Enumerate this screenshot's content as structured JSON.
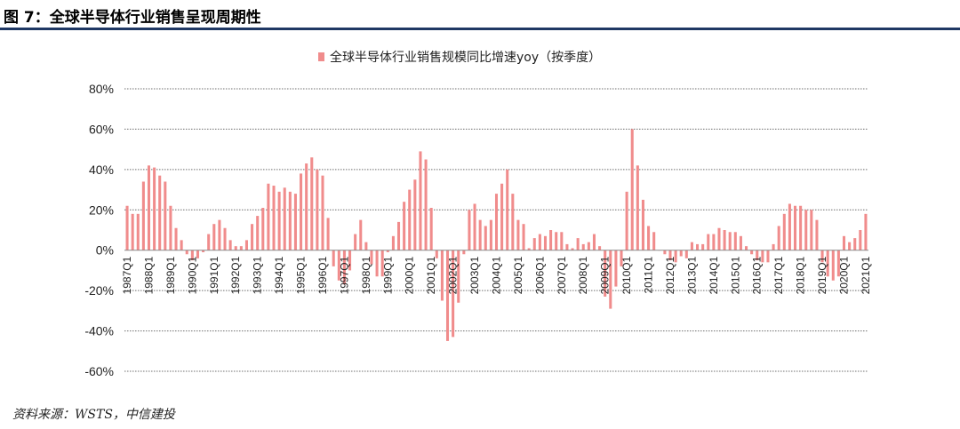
{
  "figure": {
    "title": "图 7：全球半导体行业销售呈现周期性",
    "source": "资料来源：WSTS，中信建投"
  },
  "chart_data": {
    "type": "bar",
    "bar_color": "#f08c8c",
    "grid": true,
    "legend": "top",
    "ylim": [
      -60,
      80
    ],
    "yticks": [
      -60,
      -40,
      -20,
      0,
      20,
      40,
      60,
      80
    ],
    "ytick_labels": [
      "-60%",
      "-40%",
      "-20%",
      "0%",
      "20%",
      "40%",
      "60%",
      "80%"
    ],
    "xtick_labels": [
      "1987Q1",
      "1988Q1",
      "1989Q1",
      "1990Q1",
      "1991Q1",
      "1992Q1",
      "1993Q1",
      "1994Q1",
      "1995Q1",
      "1996Q1",
      "1997Q1",
      "1998Q1",
      "1999Q1",
      "2000Q1",
      "2001Q1",
      "2002Q1",
      "2003Q1",
      "2004Q1",
      "2005Q1",
      "2006Q1",
      "2007Q1",
      "2008Q1",
      "2009Q1",
      "2010Q1",
      "2011Q1",
      "2012Q1",
      "2013Q1",
      "2014Q1",
      "2015Q1",
      "2016Q1",
      "2017Q1",
      "2018Q1",
      "2019Q1",
      "2020Q1",
      "2021Q1"
    ],
    "series": [
      {
        "name": "全球半导体行业销售规模同比增速yoy（按季度）",
        "values": [
          22,
          18,
          18,
          34,
          42,
          41,
          37,
          34,
          22,
          11,
          5,
          -2,
          -5,
          -4,
          -1,
          8,
          13,
          15,
          11,
          5,
          2,
          2,
          5,
          13,
          17,
          21,
          33,
          32,
          29,
          31,
          29,
          28,
          38,
          43,
          46,
          40,
          37,
          16,
          -8,
          -15,
          -17,
          -10,
          8,
          15,
          4,
          -7,
          -13,
          -13,
          -1,
          7,
          14,
          24,
          30,
          35,
          49,
          45,
          21,
          -4,
          -25,
          -45,
          -43,
          -26,
          -2,
          20,
          23,
          15,
          12,
          15,
          28,
          33,
          40,
          28,
          15,
          13,
          1,
          6,
          8,
          7,
          10,
          9,
          9,
          3,
          1,
          6,
          3,
          4,
          8,
          2,
          -23,
          -29,
          -18,
          -8,
          29,
          60,
          42,
          25,
          12,
          9,
          0,
          -2,
          -5,
          -6,
          -3,
          -4,
          4,
          3,
          3,
          8,
          8,
          11,
          10,
          9,
          9,
          7,
          2,
          -2,
          -5,
          -6,
          -6,
          3,
          12,
          18,
          23,
          22,
          22,
          20,
          20,
          15,
          -6,
          -13,
          -15,
          -13,
          7,
          4,
          6,
          10,
          18
        ]
      }
    ]
  }
}
